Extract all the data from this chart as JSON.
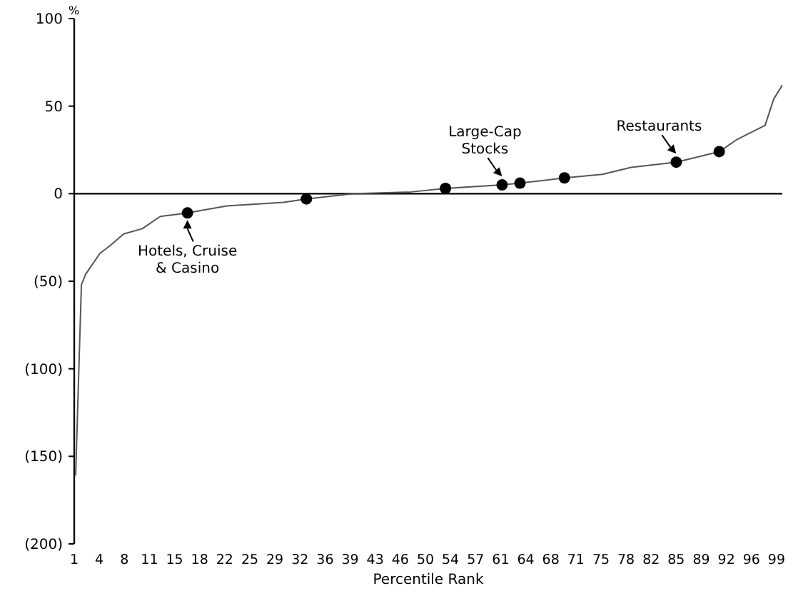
{
  "chart_data": {
    "type": "line",
    "xlabel": "Percentile Rank",
    "ylabel": "%",
    "xlim": [
      1,
      99.8
    ],
    "ylim": [
      -200,
      100
    ],
    "xticks": [
      1,
      {
        "value": 4.5,
        "label": "4"
      },
      8,
      {
        "value": 11.5,
        "label": "11"
      },
      15,
      {
        "value": 18.5,
        "label": "18"
      },
      22,
      {
        "value": 25.5,
        "label": "25"
      },
      29,
      {
        "value": 32.5,
        "label": "32"
      },
      36,
      {
        "value": 39.5,
        "label": "39"
      },
      43,
      {
        "value": 46.5,
        "label": "46"
      },
      50,
      {
        "value": 53.5,
        "label": "54"
      },
      57,
      {
        "value": 60.5,
        "label": "61"
      },
      64,
      {
        "value": 67.5,
        "label": "68"
      },
      71,
      {
        "value": 74.5,
        "label": "75"
      },
      78,
      {
        "value": 81.5,
        "label": "82"
      },
      85,
      {
        "value": 88.5,
        "label": "89"
      },
      92,
      {
        "value": 95.5,
        "label": "96"
      },
      99
    ],
    "yticks": [
      {
        "value": -200,
        "label": "(200)"
      },
      {
        "value": -150,
        "label": "(150)"
      },
      {
        "value": -100,
        "label": "(100)"
      },
      {
        "value": -50,
        "label": "(50)"
      },
      0,
      50,
      100
    ],
    "grid": false,
    "series": [
      {
        "color": "#555555",
        "marker": "none",
        "x": [
          1.2,
          2,
          2.6,
          4.6,
          5.9,
          7.9,
          10.5,
          13,
          16.8,
          22.3,
          30.2,
          33.4,
          40,
          48,
          52.8,
          60.7,
          63.2,
          69.4,
          74.7,
          78.7,
          85,
          91,
          93.5,
          97.4,
          98.6,
          99.8
        ],
        "values": [
          -161,
          -52,
          -46,
          -34,
          -30,
          -23,
          -20,
          -13,
          -11,
          -7,
          -5,
          -3,
          0,
          1,
          3,
          5,
          6,
          9,
          11,
          15,
          18,
          24,
          31,
          39,
          54,
          62
        ]
      },
      {
        "type": "scatter",
        "color": "#000000",
        "marker": "circle",
        "x": [
          16.8,
          33.4,
          52.8,
          60.7,
          63.2,
          69.4,
          85,
          91
        ],
        "values": [
          -11,
          -3,
          3,
          5,
          6,
          9,
          18,
          24
        ]
      }
    ],
    "ref_lines": [
      {
        "axis": "y",
        "value": 0,
        "color": "#000000"
      }
    ],
    "annotations": [
      {
        "text": "Hotels, Cruise\n& Casino",
        "x": 16.8,
        "y": -11
      },
      {
        "text": "Large-Cap\nStocks",
        "x": 60.7,
        "y": 5
      },
      {
        "text": "Restaurants",
        "x": 85,
        "y": 18
      }
    ]
  }
}
